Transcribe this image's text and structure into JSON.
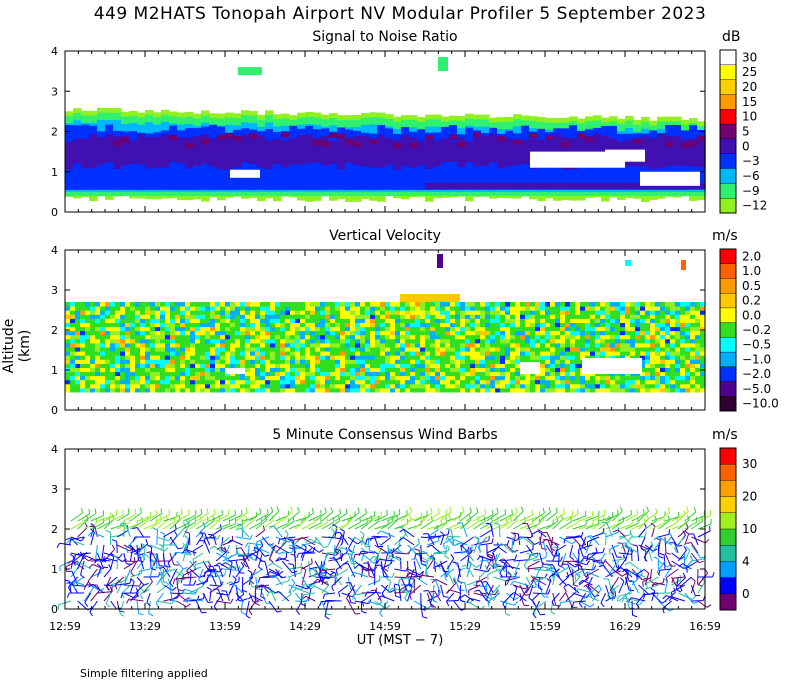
{
  "title": "449 M2HATS Tonopah Airport NV Modular Profiler  5 September 2023",
  "ylabel": "Altitude (km)",
  "xlabel": "UT  (MST − 7)",
  "footnote": "Simple filtering applied",
  "x_ticks": [
    "12:59",
    "13:29",
    "13:59",
    "14:29",
    "14:59",
    "15:29",
    "15:59",
    "16:29",
    "16:59"
  ],
  "chart_data": [
    {
      "type": "heatmap",
      "title": "Signal to Noise Ratio",
      "unit": "dB",
      "ylim": [
        0,
        4
      ],
      "y_ticks": [
        "0",
        "1",
        "2",
        "3",
        "4"
      ],
      "colorbar": {
        "labels": [
          "30",
          "25",
          "20",
          "15",
          "10",
          "5",
          "0",
          "−3",
          "−6",
          "−9",
          "−12"
        ],
        "colors": [
          "#ffffff",
          "#ffff00",
          "#ffd000",
          "#ff9a00",
          "#ff0000",
          "#700070",
          "#4010b0",
          "#0030ff",
          "#00b8ff",
          "#30f070",
          "#90f020"
        ]
      },
      "layers": [
        {
          "altitude_km": 2.3,
          "value_range": "−9 to −12"
        },
        {
          "altitude_km": 1.9,
          "value_range": "−3 to −6"
        },
        {
          "altitude_km": 1.5,
          "value_range": "0 to 5"
        },
        {
          "altitude_km": 0.7,
          "value_range": "−3 to 0"
        }
      ]
    },
    {
      "type": "heatmap",
      "title": "Vertical Velocity",
      "unit": "m/s",
      "ylim": [
        0,
        4
      ],
      "y_ticks": [
        "0",
        "1",
        "2",
        "3",
        "4"
      ],
      "colorbar": {
        "labels": [
          "2.0",
          "1.0",
          "0.5",
          "0.2",
          "0.0",
          "−0.2",
          "−0.5",
          "−1.0",
          "−2.0",
          "−5.0",
          "−10.0"
        ],
        "colors": [
          "#ff0000",
          "#ff6000",
          "#ff9a00",
          "#ffc800",
          "#ffff00",
          "#30e020",
          "#00ffff",
          "#00b0ff",
          "#0030ff",
          "#500090",
          "#300030"
        ]
      },
      "data_top_km": 2.7
    },
    {
      "type": "wind_barbs",
      "title": "5 Minute Consensus Wind Barbs",
      "unit": "m/s",
      "ylim": [
        0,
        4
      ],
      "y_ticks": [
        "0",
        "1",
        "2",
        "3",
        "4"
      ],
      "colorbar": {
        "labels": [
          "30",
          "20",
          "10",
          "4",
          "0"
        ],
        "colors": [
          "#ff0000",
          "#ff6000",
          "#ffa000",
          "#ffd000",
          "#a0f020",
          "#30d030",
          "#20c0a0",
          "#00a0ff",
          "#0000ff",
          "#700070"
        ]
      },
      "layers": [
        {
          "altitude_km": 2.3,
          "speed_ms": "8–12",
          "direction": "southwesterly"
        },
        {
          "altitude_km": 1.0,
          "speed_ms": "2–6",
          "direction": "variable"
        }
      ]
    }
  ]
}
